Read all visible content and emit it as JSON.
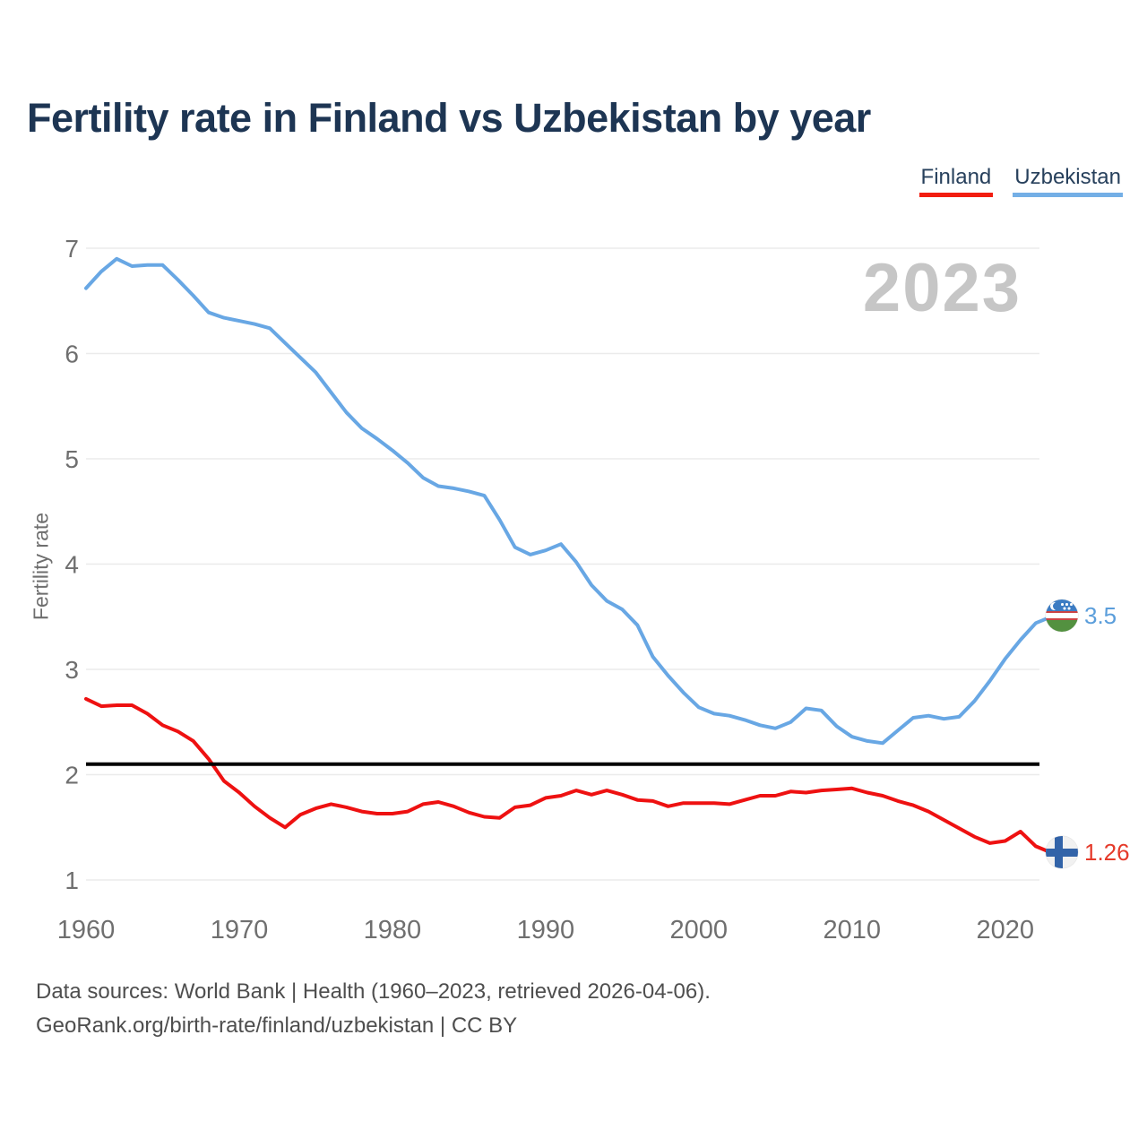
{
  "title": "Fertility rate in Finland vs Uzbekistan by year",
  "watermark": "2023",
  "legend": {
    "finland": {
      "label": "Finland",
      "color": "#f21d10"
    },
    "uzbekistan": {
      "label": "Uzbekistan",
      "color": "#74afe6"
    }
  },
  "colors": {
    "finland_line": "#ee1111",
    "uzbekistan_line": "#68a7e4",
    "replacement_line": "#000000",
    "grid": "#ebebeb",
    "tick_text": "#6f6f6f",
    "title_text": "#1d3553",
    "watermark_text": "#c6c6c6"
  },
  "footer": {
    "line1": "Data sources: World Bank | Health (1960–2023, retrieved 2026-04-06).",
    "line2": "GeoRank.org/birth-rate/finland/uzbekistan | CC BY"
  },
  "chart_data": {
    "type": "line",
    "title": "Fertility rate in Finland vs Uzbekistan by year",
    "xlabel": "",
    "ylabel": "Fertility rate",
    "ylim": [
      1,
      7
    ],
    "xlim": [
      1960,
      2023
    ],
    "y_ticks": [
      1,
      2,
      3,
      4,
      5,
      6,
      7
    ],
    "x_ticks": [
      1960,
      1970,
      1980,
      1990,
      2000,
      2010,
      2020
    ],
    "grid": true,
    "legend_position": "top-right",
    "replacement_line": 2.1,
    "years": [
      1960,
      1961,
      1962,
      1963,
      1964,
      1965,
      1966,
      1967,
      1968,
      1969,
      1970,
      1971,
      1972,
      1973,
      1974,
      1975,
      1976,
      1977,
      1978,
      1979,
      1980,
      1981,
      1982,
      1983,
      1984,
      1985,
      1986,
      1987,
      1988,
      1989,
      1990,
      1991,
      1992,
      1993,
      1994,
      1995,
      1996,
      1997,
      1998,
      1999,
      2000,
      2001,
      2002,
      2003,
      2004,
      2005,
      2006,
      2007,
      2008,
      2009,
      2010,
      2011,
      2012,
      2013,
      2014,
      2015,
      2016,
      2017,
      2018,
      2019,
      2020,
      2021,
      2022,
      2023
    ],
    "series": [
      {
        "name": "Finland",
        "color": "#ee1111",
        "end_label": "1.26",
        "values": [
          2.72,
          2.65,
          2.66,
          2.66,
          2.58,
          2.47,
          2.41,
          2.32,
          2.15,
          1.94,
          1.83,
          1.7,
          1.59,
          1.5,
          1.62,
          1.68,
          1.72,
          1.69,
          1.65,
          1.63,
          1.63,
          1.65,
          1.72,
          1.74,
          1.7,
          1.64,
          1.6,
          1.59,
          1.69,
          1.71,
          1.78,
          1.8,
          1.85,
          1.81,
          1.85,
          1.81,
          1.76,
          1.75,
          1.7,
          1.73,
          1.73,
          1.73,
          1.72,
          1.76,
          1.8,
          1.8,
          1.84,
          1.83,
          1.85,
          1.86,
          1.87,
          1.83,
          1.8,
          1.75,
          1.71,
          1.65,
          1.57,
          1.49,
          1.41,
          1.35,
          1.37,
          1.46,
          1.32,
          1.26
        ]
      },
      {
        "name": "Uzbekistan",
        "color": "#68a7e4",
        "end_label": "3.5",
        "values": [
          6.62,
          6.78,
          6.9,
          6.83,
          6.84,
          6.84,
          6.7,
          6.55,
          6.39,
          6.34,
          6.31,
          6.28,
          6.24,
          6.1,
          5.96,
          5.82,
          5.63,
          5.44,
          5.29,
          5.19,
          5.08,
          4.96,
          4.82,
          4.74,
          4.72,
          4.69,
          4.65,
          4.42,
          4.16,
          4.09,
          4.13,
          4.19,
          4.02,
          3.8,
          3.65,
          3.57,
          3.42,
          3.12,
          2.94,
          2.78,
          2.64,
          2.58,
          2.56,
          2.52,
          2.47,
          2.44,
          2.5,
          2.63,
          2.61,
          2.46,
          2.36,
          2.32,
          2.3,
          2.42,
          2.54,
          2.56,
          2.53,
          2.55,
          2.7,
          2.89,
          3.1,
          3.28,
          3.44,
          3.5
        ]
      }
    ]
  }
}
